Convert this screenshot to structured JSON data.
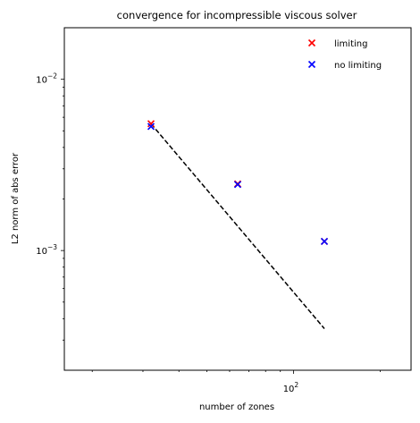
{
  "chart_data": {
    "type": "scatter",
    "title": "convergence for incompressible viscous solver",
    "xlabel": "number of zones",
    "ylabel": "L2 norm of abs error",
    "xscale": "log",
    "yscale": "log",
    "xlim": [
      16,
      256
    ],
    "ylim": [
      0.0002,
      0.02
    ],
    "grid": false,
    "legend_position": "top-right",
    "x_ticks": [
      {
        "value": 100,
        "base": "10",
        "exp": "2"
      }
    ],
    "y_ticks": [
      {
        "value": 0.01,
        "base": "10",
        "exp": "−2"
      },
      {
        "value": 0.001,
        "base": "10",
        "exp": "−3"
      }
    ],
    "series": [
      {
        "name": "limiting",
        "marker": "x",
        "color": "#ff0000",
        "x": [
          32,
          64,
          128
        ],
        "y": [
          0.0055,
          0.00245,
          0.00113
        ]
      },
      {
        "name": "no limiting",
        "marker": "x",
        "color": "#0000ff",
        "x": [
          32,
          64,
          128
        ],
        "y": [
          0.0053,
          0.00243,
          0.00113
        ]
      }
    ],
    "reference_line": {
      "style": "dashed",
      "color": "#000000",
      "x": [
        32,
        128
      ],
      "y": [
        0.0055,
        0.00035
      ]
    }
  }
}
